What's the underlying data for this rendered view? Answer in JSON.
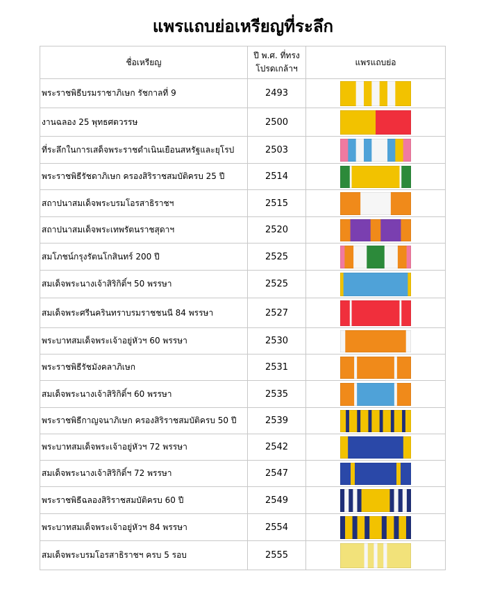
{
  "title": "แพรแถบย่อเหรียญที่ระลึก",
  "table": {
    "header": [
      "ชื่อเหรียญ",
      [
        "ปี พ.ศ. ที่ทรง",
        "โปรดเกล้าฯ"
      ],
      "แพรแถบย่อ"
    ],
    "rows": [
      [
        "พระราชพิธีบรมราชาภิเษก รัชกาลที่ 9",
        2493
      ],
      [
        "งานฉลอง 25 พุทธศตวรรษ",
        2500
      ],
      [
        "ที่ระลึกในการเสด็จพระราชดำเนินเยือนสหรัฐและยุโรป",
        2503
      ],
      [
        "พระราชพิธีรัชดาภิเษก ครองสิริราชสมบัติครบ 25 ปี",
        2514
      ],
      [
        "สถาปนาสมเด็จพระบรมโอรสาธิราชฯ",
        2515
      ],
      [
        "สถาปนาสมเด็จพระเทพรัตนราชสุดาฯ",
        2520
      ],
      [
        "สมโภชน์กรุงรัตนโกสินทร์ 200 ปี",
        2525
      ],
      [
        "สมเด็จพระนางเจ้าสิริกิติ์ฯ 50 พรรษา",
        2525
      ],
      [
        "สมเด็จพระศรีนครินทราบรมราชชนนี 84 พรรษา",
        2527
      ],
      [
        "พระบาทสมเด็จพระเจ้าอยู่หัวฯ 60 พรรษา",
        2530
      ],
      [
        "พระราชพิธีรัชมังคลาภิเษก",
        2531
      ],
      [
        "สมเด็จพระนางเจ้าสิริกิติ์ฯ 60 พรรษา",
        2535
      ],
      [
        "พระราชพิธีกาญจนาภิเษก ครองสิริราชสมบัติครบ 50 ปี",
        2539
      ],
      [
        "พระบาทสมเด็จพระเจ้าอยู่หัวฯ 72 พรรษา",
        2542
      ],
      [
        "สมเด็จพระนางเจ้าสิริกิติ์ฯ 72 พรรษา",
        2547
      ],
      [
        "พระราชพิธีฉลองสิริราชสมบัติครบ 60 ปี",
        2549
      ],
      [
        "พระบาทสมเด็จพระเจ้าอยู่หัวฯ 84 พรรษา",
        2554
      ],
      [
        "สมเด็จพระบรมโอรสาธิราชฯ ครบ 5 รอบ",
        2555
      ]
    ]
  }
}
